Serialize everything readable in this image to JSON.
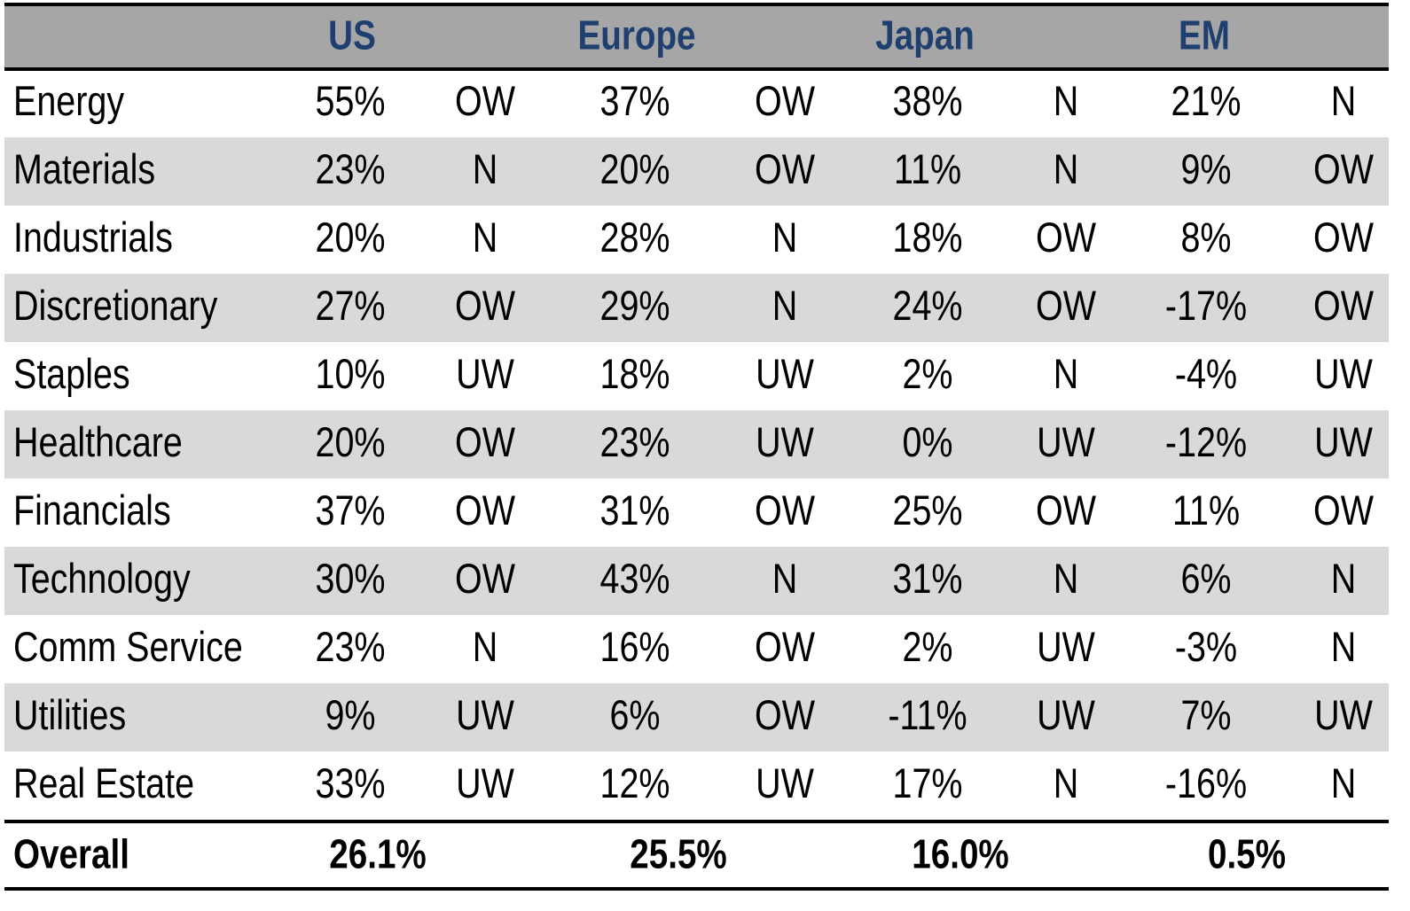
{
  "header": [
    "US",
    "Europe",
    "Japan",
    "EM"
  ],
  "rows": [
    {
      "sector": "Energy",
      "cells": [
        "55%",
        "OW",
        "37%",
        "OW",
        "38%",
        "N",
        "21%",
        "N"
      ]
    },
    {
      "sector": "Materials",
      "cells": [
        "23%",
        "N",
        "20%",
        "OW",
        "11%",
        "N",
        "9%",
        "OW"
      ]
    },
    {
      "sector": "Industrials",
      "cells": [
        "20%",
        "N",
        "28%",
        "N",
        "18%",
        "OW",
        "8%",
        "OW"
      ]
    },
    {
      "sector": "Discretionary",
      "cells": [
        "27%",
        "OW",
        "29%",
        "N",
        "24%",
        "OW",
        "-17%",
        "OW"
      ]
    },
    {
      "sector": "Staples",
      "cells": [
        "10%",
        "UW",
        "18%",
        "UW",
        "2%",
        "N",
        "-4%",
        "UW"
      ]
    },
    {
      "sector": "Healthcare",
      "cells": [
        "20%",
        "OW",
        "23%",
        "UW",
        "0%",
        "UW",
        "-12%",
        "UW"
      ]
    },
    {
      "sector": "Financials",
      "cells": [
        "37%",
        "OW",
        "31%",
        "OW",
        "25%",
        "OW",
        "11%",
        "OW"
      ]
    },
    {
      "sector": "Technology",
      "cells": [
        "30%",
        "OW",
        "43%",
        "N",
        "31%",
        "N",
        "6%",
        "N"
      ]
    },
    {
      "sector": "Comm Service",
      "cells": [
        "23%",
        "N",
        "16%",
        "OW",
        "2%",
        "UW",
        "-3%",
        "N"
      ]
    },
    {
      "sector": "Utilities",
      "cells": [
        "9%",
        "UW",
        "6%",
        "OW",
        "-11%",
        "UW",
        "7%",
        "UW"
      ]
    },
    {
      "sector": "Real Estate",
      "cells": [
        "33%",
        "UW",
        "12%",
        "UW",
        "17%",
        "N",
        "-16%",
        "N"
      ]
    }
  ],
  "overall": {
    "label": "Overall",
    "values": [
      "26.1%",
      "25.5%",
      "16.0%",
      "0.5%"
    ]
  }
}
